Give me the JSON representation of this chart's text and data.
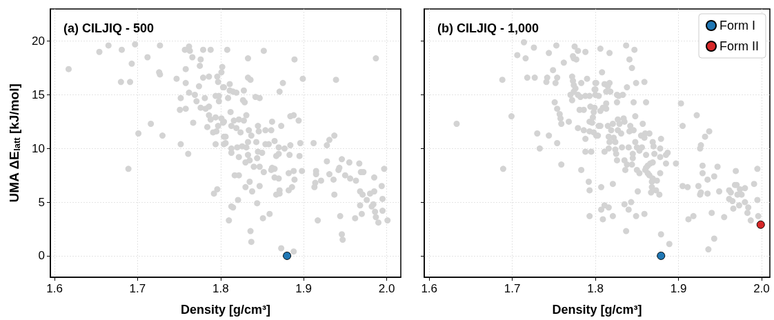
{
  "chart_data": [
    {
      "type": "scatter",
      "title": "(a) CILJIQ - 500",
      "xlabel": "Density [g/cm³]",
      "ylabel": "UMA ΔE$_{latt}$ [kJ/mol]",
      "xlim": [
        1.595,
        2.017
      ],
      "ylim": [
        -2,
        23
      ],
      "xticks": [
        1.6,
        1.7,
        1.8,
        1.9,
        {
          "value": 2,
          "label": "2.0"
        }
      ],
      "yticks": [
        0,
        5,
        10,
        15,
        20
      ],
      "grid": true,
      "legend": false,
      "marker": "circle",
      "series": [
        {
          "color": "#d3d3d3",
          "x": [
            1.617,
            1.654,
            1.665,
            1.681,
            1.697,
            1.727,
            1.712,
            1.693,
            1.68,
            1.691,
            1.726,
            1.727,
            1.747,
            1.757,
            1.762,
            1.763,
            1.779,
            1.788,
            1.766,
            1.776,
            1.775,
            1.758,
            1.802,
            1.801,
            1.796,
            1.786,
            1.779,
            1.797,
            1.758,
            1.774,
            1.803,
            1.762,
            1.769,
            1.752,
            1.781,
            1.794,
            1.798,
            1.798,
            1.771,
            1.751,
            1.758,
            1.776,
            1.782,
            1.786,
            1.786,
            1.788,
            1.794,
            1.801,
            1.803,
            1.797,
            1.767,
            1.784,
            1.791,
            1.795,
            1.804,
            1.716,
            1.701,
            1.73,
            1.752,
            1.794,
            1.804,
            1.761,
            1.689,
            1.796,
            1.792,
            1.808,
            1.852,
            1.833,
            1.889,
            1.987,
            1.899,
            1.939,
            1.875,
            1.833,
            1.836,
            1.811,
            1.804,
            1.811,
            1.815,
            1.819,
            1.828,
            1.871,
            1.809,
            1.842,
            1.847,
            1.827,
            1.829,
            1.812,
            1.831,
            1.884,
            1.888,
            1.894,
            1.862,
            1.804,
            1.816,
            1.822,
            1.828,
            1.813,
            1.819,
            1.845,
            1.873,
            1.824,
            1.834,
            1.846,
            1.854,
            1.861,
            1.837,
            1.806,
            1.806,
            1.833,
            1.843,
            1.854,
            1.858,
            1.865,
            1.884,
            1.87,
            1.877,
            1.896,
            1.912,
            1.928,
            1.931,
            1.937,
            1.813,
            1.82,
            1.826,
            1.831,
            1.813,
            1.822,
            1.833,
            1.845,
            1.85,
            1.87,
            1.867,
            1.883,
            1.895,
            1.83,
            1.835,
            1.844,
            1.84,
            1.847,
            1.862,
            1.865,
            1.928,
            1.946,
            1.955,
            1.967,
            1.997,
            1.943,
            1.942,
            1.817,
            1.822,
            1.852,
            1.861,
            1.865,
            1.87,
            1.882,
            1.888,
            1.889,
            1.898,
            1.915,
            1.915,
            1.931,
            1.936,
            1.95,
            1.956,
            1.963,
            1.969,
            1.972,
            1.985,
            1.921,
            1.914,
            1.913,
            1.835,
            1.83,
            1.847,
            1.838,
            1.871,
            1.867,
            1.871,
            1.882,
            1.886,
            1.937,
            1.968,
            1.971,
            1.98,
            1.985,
            1.994,
            1.976,
            1.982,
            1.984,
            1.995,
            1.968,
            1.986,
            1.995,
            1.97,
            1.987,
            1.99,
            2.001,
            1.962,
            1.944,
            1.917,
            1.821,
            1.813,
            1.815,
            1.844,
            1.859,
            1.851,
            1.81,
            1.836,
            1.837,
            1.946,
            1.947,
            1.873,
            1.888
          ],
          "values": [
            17.4,
            19.0,
            19.6,
            19.2,
            19.7,
            19.6,
            18.5,
            17.9,
            16.2,
            16.2,
            17.1,
            16.9,
            16.5,
            19.2,
            19.5,
            19.1,
            19.2,
            19.2,
            18.5,
            18.3,
            17.7,
            17.4,
            17.6,
            17.1,
            16.7,
            16.7,
            16.6,
            16.2,
            16.1,
            15.8,
            15.7,
            15.2,
            15.0,
            14.7,
            14.7,
            14.9,
            14.9,
            14.4,
            14.4,
            13.6,
            13.7,
            13.8,
            13.7,
            13.9,
            13.1,
            12.7,
            12.9,
            12.8,
            12.4,
            12.1,
            12.4,
            12.0,
            11.5,
            11.6,
            11.1,
            12.3,
            11.4,
            11.2,
            10.4,
            10.4,
            10.4,
            9.5,
            8.1,
            6.2,
            5.8,
            19.2,
            19.1,
            18.4,
            18.3,
            18.4,
            16.5,
            16.4,
            16.1,
            16.6,
            16.4,
            16.0,
            15.7,
            15.4,
            15.3,
            15.2,
            15.4,
            15.3,
            14.7,
            14.8,
            14.7,
            14.5,
            14.3,
            13.4,
            13.1,
            13.0,
            13.1,
            12.6,
            12.5,
            12.5,
            12.6,
            12.7,
            12.6,
            12.1,
            11.9,
            12.1,
            12.1,
            11.5,
            11.7,
            11.6,
            11.7,
            11.7,
            11.2,
            11.1,
            10.5,
            10.6,
            10.6,
            10.4,
            10.4,
            10.7,
            10.3,
            10.1,
            10.0,
            10.5,
            10.5,
            10.3,
            10.8,
            11.2,
            10.0,
            10.1,
            10.2,
            10.1,
            9.6,
            9.2,
            9.4,
            9.7,
            9.6,
            9.5,
            9.3,
            9.4,
            9.3,
            8.7,
            8.9,
            9.1,
            8.3,
            8.3,
            8.2,
            8.1,
            8.8,
            9.0,
            8.7,
            8.6,
            8.1,
            8.2,
            8.0,
            7.5,
            7.5,
            7.8,
            8.0,
            7.3,
            7.2,
            7.7,
            7.9,
            7.1,
            7.9,
            7.9,
            7.6,
            7.6,
            7.1,
            7.5,
            7.2,
            7.0,
            7.8,
            7.8,
            7.3,
            7.0,
            6.8,
            6.4,
            6.9,
            6.4,
            6.5,
            6.0,
            6.1,
            5.7,
            5.8,
            6.1,
            6.4,
            5.7,
            6.0,
            5.7,
            5.8,
            6.0,
            6.5,
            5.2,
            4.6,
            4.8,
            5.3,
            4.7,
            4.1,
            4.2,
            3.9,
            3.6,
            3.1,
            3.3,
            3.5,
            3.7,
            3.3,
            5.2,
            4.6,
            4.5,
            4.9,
            3.9,
            3.5,
            3.3,
            2.3,
            1.3,
            2.0,
            1.5,
            0.7,
            0.4
          ]
        },
        {
          "color": "#1f77b4",
          "x": [
            1.88
          ],
          "values": [
            0.0
          ]
        }
      ]
    },
    {
      "type": "scatter",
      "title": "(b) CILJIQ - 1,000",
      "xlabel": "Density [g/cm³]",
      "xlim": [
        1.594,
        2.01
      ],
      "ylim": [
        -2,
        23
      ],
      "xticks": [
        1.6,
        1.7,
        1.8,
        1.9,
        {
          "value": 2,
          "label": "2.0"
        }
      ],
      "yticks": [
        0,
        5,
        10,
        15,
        20
      ],
      "grid": true,
      "legend": "top right",
      "marker": "circle",
      "tick_labels": "x",
      "series": [
        {
          "color": "#d3d3d3",
          "x": [
            1.714,
            1.726,
            1.706,
            1.716,
            1.753,
            1.744,
            1.775,
            1.779,
            1.788,
            1.773,
            1.774,
            1.777,
            1.762,
            1.749,
            1.688,
            1.718,
            1.727,
            1.742,
            1.741,
            1.752,
            1.754,
            1.772,
            1.773,
            1.774,
            1.776,
            1.783,
            1.79,
            1.8,
            1.799,
            1.774,
            1.77,
            1.772,
            1.779,
            1.782,
            1.788,
            1.793,
            1.8,
            1.751,
            1.754,
            1.757,
            1.758,
            1.759,
            1.768,
            1.781,
            1.786,
            1.794,
            1.799,
            1.798,
            1.797,
            1.793,
            1.796,
            1.804,
            1.779,
            1.786,
            1.793,
            1.798,
            1.801,
            1.788,
            1.699,
            1.633,
            1.73,
            1.744,
            1.754,
            1.733,
            1.788,
            1.795,
            1.759,
            1.689,
            1.783,
            1.792,
            1.793,
            1.793,
            1.806,
            1.817,
            1.837,
            1.847,
            1.841,
            1.844,
            1.808,
            1.801,
            1.811,
            1.817,
            1.815,
            1.8,
            1.813,
            1.818,
            1.804,
            1.826,
            1.828,
            1.833,
            1.849,
            1.859,
            1.838,
            1.846,
            1.861,
            1.826,
            1.813,
            1.809,
            1.813,
            1.806,
            1.903,
            1.922,
            1.905,
            1.848,
            1.827,
            1.834,
            1.835,
            1.829,
            1.821,
            1.806,
            1.815,
            1.857,
            1.842,
            1.819,
            1.827,
            1.841,
            1.846,
            1.831,
            1.803,
            1.816,
            1.822,
            1.855,
            1.86,
            1.865,
            1.859,
            1.932,
            1.937,
            1.927,
            1.926,
            1.817,
            1.824,
            1.848,
            1.869,
            1.879,
            1.811,
            1.816,
            1.824,
            1.832,
            1.84,
            1.85,
            1.856,
            1.87,
            1.878,
            1.825,
            1.845,
            1.853,
            1.861,
            1.871,
            1.878,
            1.887,
            1.885,
            1.826,
            1.835,
            1.845,
            1.838,
            1.844,
            1.866,
            1.869,
            1.863,
            1.861,
            1.885,
            1.897,
            1.836,
            1.85,
            1.853,
            1.86,
            1.863,
            1.865,
            1.869,
            1.874,
            1.878,
            1.868,
            1.929,
            1.947,
            1.929,
            1.943,
            1.935,
            1.969,
            1.995,
            1.868,
            1.873,
            1.867,
            1.877,
            1.851,
            1.807,
            1.821,
            1.905,
            1.911,
            1.924,
            1.927,
            1.926,
            1.935,
            1.949,
            1.961,
            1.963,
            1.968,
            1.97,
            1.974,
            1.98,
            1.976,
            1.971,
            1.991,
            1.961,
            1.965,
            1.973,
            1.98,
            1.995,
            1.984,
            1.966,
            1.983,
            1.996,
            1.987,
            1.955,
            1.94,
            1.918,
            1.912,
            1.811,
            1.807,
            1.816,
            1.835,
            1.843,
            1.84,
            1.859,
            1.849,
            1.821,
            1.809,
            1.837,
            1.879,
            1.889,
            1.943,
            1.936
          ],
          "values": [
            19.9,
            19.4,
            18.7,
            18.4,
            19.6,
            18.9,
            19.5,
            19.1,
            19.0,
            18.6,
            18.4,
            18.3,
            18.0,
            17.3,
            16.4,
            16.6,
            16.6,
            16.6,
            16.2,
            16.1,
            16.6,
            16.7,
            16.3,
            15.9,
            15.6,
            16.1,
            16.5,
            16.1,
            15.5,
            15.3,
            15.0,
            14.5,
            15.0,
            14.8,
            14.9,
            14.9,
            15.0,
            14.3,
            13.7,
            13.2,
            12.8,
            12.3,
            12.5,
            13.6,
            13.6,
            13.9,
            13.8,
            13.4,
            12.9,
            12.5,
            12.4,
            12.1,
            11.9,
            11.7,
            11.6,
            11.5,
            11.2,
            10.9,
            13.0,
            12.3,
            11.4,
            11.2,
            10.5,
            10.0,
            9.7,
            9.7,
            8.5,
            8.1,
            8.0,
            6.9,
            6.1,
            3.7,
            19.3,
            18.9,
            19.6,
            19.2,
            18.3,
            17.5,
            17.1,
            16.1,
            16.0,
            16.1,
            15.8,
            15.5,
            15.3,
            15.3,
            14.9,
            15.0,
            14.9,
            15.0,
            16.1,
            16.2,
            15.7,
            14.3,
            14.3,
            14.3,
            14.2,
            13.8,
            13.7,
            13.5,
            14.2,
            13.1,
            12.1,
            13.0,
            12.7,
            12.8,
            12.5,
            12.3,
            12.3,
            12.1,
            12.1,
            12.3,
            12.1,
            11.7,
            11.7,
            11.6,
            11.7,
            11.4,
            11.2,
            11.1,
            11.0,
            11.2,
            11.4,
            11.4,
            11.0,
            11.1,
            11.6,
            10.3,
            10.0,
            10.6,
            10.6,
            10.6,
            10.6,
            10.9,
            9.7,
            10.0,
            9.9,
            10.1,
            10.1,
            10.1,
            10.1,
            10.2,
            10.0,
            9.5,
            9.5,
            9.8,
            9.4,
            9.5,
            9.2,
            9.6,
            9.4,
            8.9,
            8.9,
            9.1,
            8.5,
            8.5,
            8.6,
            8.7,
            8.4,
            8.2,
            8.6,
            8.6,
            8.0,
            8.0,
            7.7,
            8.0,
            7.7,
            7.5,
            7.2,
            7.0,
            7.7,
            6.9,
            8.4,
            8.3,
            7.7,
            7.4,
            7.1,
            7.9,
            8.1,
            6.4,
            6.1,
            5.9,
            5.7,
            6.0,
            6.4,
            6.7,
            6.5,
            6.4,
            6.5,
            5.9,
            5.7,
            5.8,
            6.0,
            6.1,
            5.9,
            6.6,
            6.6,
            6.2,
            6.3,
            5.7,
            5.7,
            6.7,
            5.3,
            5.1,
            4.7,
            5.0,
            5.2,
            4.5,
            4.4,
            4.0,
            3.7,
            3.3,
            3.6,
            4.0,
            3.7,
            3.4,
            4.7,
            4.3,
            4.5,
            4.8,
            5.0,
            4.3,
            3.9,
            3.7,
            3.7,
            3.4,
            2.3,
            2.0,
            1.1,
            1.6,
            0.6
          ]
        },
        {
          "name": "Form I",
          "color": "#1f77b4",
          "x": [
            1.879
          ],
          "values": [
            0.0
          ]
        },
        {
          "name": "Form II",
          "color": "#d62728",
          "x": [
            1.999
          ],
          "values": [
            2.9
          ]
        }
      ]
    }
  ]
}
